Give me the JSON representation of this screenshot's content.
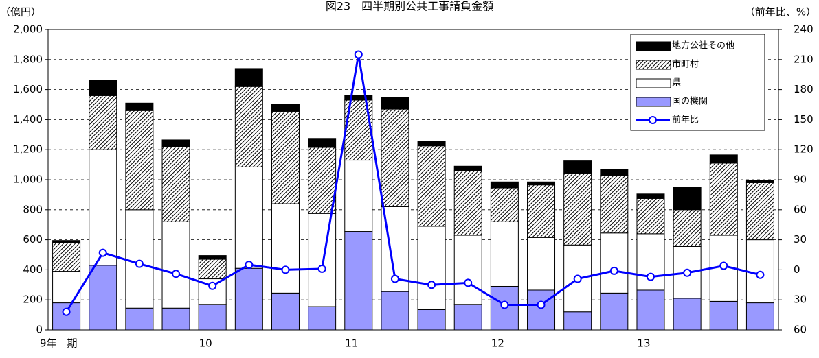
{
  "chart_data": {
    "type": "bar",
    "title": "図23　四半期別公共工事請負金額",
    "y_label": "（億円）",
    "y2_label": "（前年比、%）",
    "categories": [
      "9年　期",
      null,
      null,
      null,
      "10",
      null,
      null,
      null,
      "11",
      null,
      null,
      null,
      "12",
      null,
      null,
      null,
      "13",
      null,
      null,
      null
    ],
    "series": [
      {
        "name": "国の機関",
        "color": "#9999ff",
        "values": [
          180,
          430,
          145,
          145,
          170,
          410,
          245,
          155,
          655,
          255,
          135,
          170,
          290,
          265,
          120,
          245,
          265,
          210,
          190,
          180
        ]
      },
      {
        "name": "県",
        "color": "#ffffff",
        "values": [
          210,
          770,
          655,
          575,
          170,
          675,
          595,
          620,
          475,
          565,
          555,
          460,
          430,
          350,
          445,
          400,
          375,
          345,
          440,
          420
        ]
      },
      {
        "name": "市町村",
        "color": "#000000",
        "fill": "hatch",
        "values": [
          190,
          360,
          660,
          500,
          130,
          535,
          615,
          440,
          400,
          650,
          535,
          430,
          225,
          350,
          475,
          385,
          235,
          245,
          480,
          380
        ]
      },
      {
        "name": "地方公社その他",
        "color": "#000000",
        "values": [
          15,
          100,
          50,
          45,
          25,
          120,
          45,
          60,
          30,
          80,
          30,
          30,
          40,
          20,
          85,
          40,
          30,
          150,
          55,
          15
        ]
      },
      {
        "name": "前年比",
        "type": "line",
        "axis": "y2",
        "color": "#0000ff",
        "values": [
          -42,
          17,
          6,
          -4,
          -16,
          5,
          0,
          1,
          215,
          -9,
          -15,
          -13,
          -35,
          -35,
          -9,
          -1,
          -7,
          -3,
          4,
          -5
        ]
      }
    ],
    "ylim": [
      0,
      2000
    ],
    "yticks": [
      {
        "value": 0,
        "label": "0"
      },
      {
        "value": 200,
        "label": "200"
      },
      {
        "value": 400,
        "label": "400"
      },
      {
        "value": 600,
        "label": "600"
      },
      {
        "value": 800,
        "label": "800"
      },
      {
        "value": 1000,
        "label": "1,000"
      },
      {
        "value": 1200,
        "label": "1,200"
      },
      {
        "value": 1400,
        "label": "1,400"
      },
      {
        "value": 1600,
        "label": "1,600"
      },
      {
        "value": 1800,
        "label": "1,800"
      },
      {
        "value": 2000,
        "label": "2,000"
      }
    ],
    "y2lim": [
      -60,
      240
    ],
    "y2ticks": [
      {
        "value": -60,
        "label": "60"
      },
      {
        "value": -30,
        "label": "30"
      },
      0,
      30,
      60,
      90,
      120,
      150,
      180,
      210,
      240
    ],
    "grid": true,
    "legend": "upper right"
  }
}
